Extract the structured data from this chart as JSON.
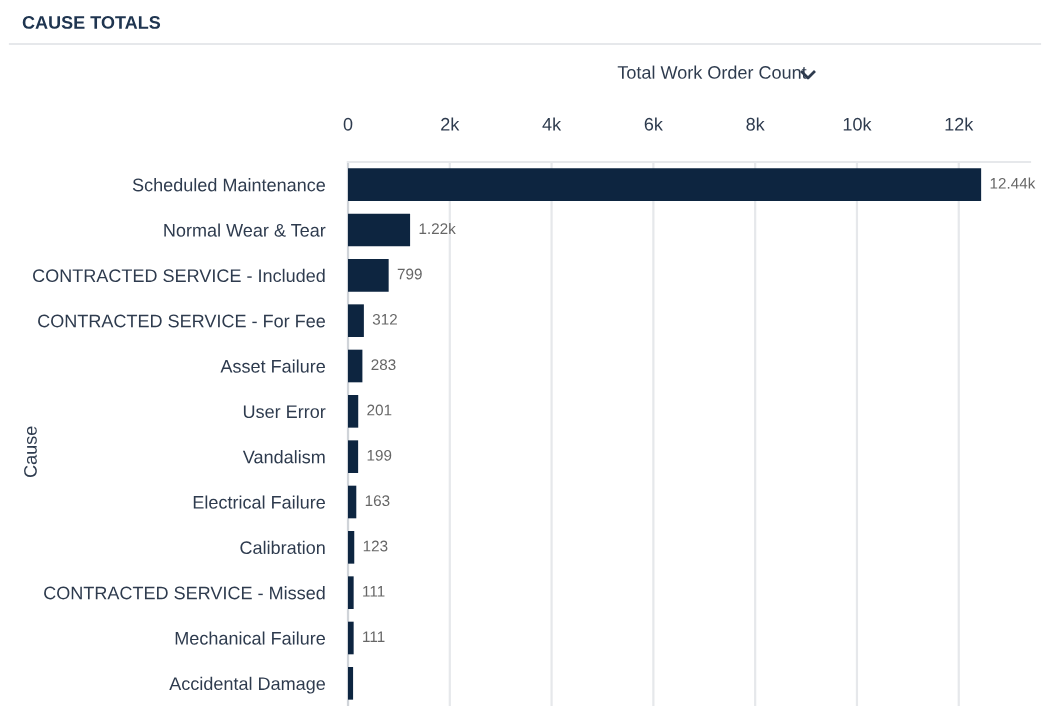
{
  "chart_data": {
    "type": "bar",
    "orientation": "horizontal",
    "title": "CAUSE TOTALS",
    "xlabel": "Total Work Order Count",
    "ylabel": "Cause",
    "categories": [
      "Scheduled Maintenance",
      "Normal Wear & Tear",
      "CONTRACTED SERVICE - Included",
      "CONTRACTED SERVICE - For Fee",
      "Asset Failure",
      "User Error",
      "Vandalism",
      "Electrical Failure",
      "Calibration",
      "CONTRACTED SERVICE - Missed",
      "Mechanical Failure",
      "Accidental Damage"
    ],
    "values": [
      12440,
      1220,
      799,
      312,
      283,
      201,
      199,
      163,
      123,
      111,
      111,
      100
    ],
    "value_labels": [
      "12.44k",
      "1.22k",
      "799",
      "312",
      "283",
      "201",
      "199",
      "163",
      "123",
      "111",
      "111",
      null
    ],
    "color": "#0d2540",
    "xlim": [
      0,
      13400
    ],
    "xticks": [
      0,
      {
        "value": 2000,
        "label": "2k"
      },
      {
        "value": 4000,
        "label": "4k"
      },
      {
        "value": 6000,
        "label": "6k"
      },
      {
        "value": 8000,
        "label": "8k"
      },
      {
        "value": 10000,
        "label": "10k"
      },
      {
        "value": 12000,
        "label": "12k"
      }
    ],
    "grid": "x",
    "legend": false
  }
}
